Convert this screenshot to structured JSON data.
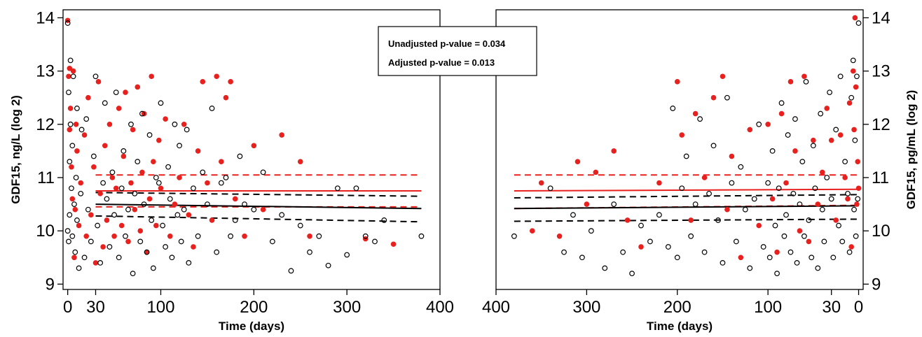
{
  "annotation": {
    "lines": [
      "Unadjusted p-value = 0.034",
      "Adjusted p-value = 0.013"
    ]
  },
  "chart_data": [
    {
      "type": "scatter",
      "panel": "left",
      "title": "",
      "xlabel": "Time (days)",
      "ylabel": "GDF15, ng/L (log 2)",
      "xlim": [
        -5,
        400
      ],
      "ylim": [
        8.9,
        14.15
      ],
      "x_ticks": [
        0,
        30,
        100,
        200,
        300,
        400
      ],
      "y_ticks": [
        9,
        10,
        11,
        12,
        13,
        14
      ],
      "x_reversed": false,
      "grid": false,
      "marker_colors": {
        "black": "#000000",
        "red": "#e8201e"
      },
      "lines": [
        {
          "color": "#e8201e",
          "style": "solid",
          "x": [
            30,
            380
          ],
          "y": [
            10.75,
            10.75
          ]
        },
        {
          "color": "#e8201e",
          "style": "dashed",
          "x": [
            30,
            380
          ],
          "y": [
            11.05,
            11.05
          ]
        },
        {
          "color": "#e8201e",
          "style": "dashed",
          "x": [
            30,
            380
          ],
          "y": [
            10.45,
            10.45
          ]
        },
        {
          "color": "#000000",
          "style": "solid",
          "x": [
            30,
            380
          ],
          "y": [
            10.5,
            10.42
          ]
        },
        {
          "color": "#000000",
          "style": "dashed",
          "x": [
            30,
            380
          ],
          "y": [
            10.72,
            10.65
          ]
        },
        {
          "color": "#000000",
          "style": "dashed",
          "x": [
            30,
            380
          ],
          "y": [
            10.28,
            10.17
          ]
        }
      ],
      "series": [
        {
          "color": "red",
          "x": [
            0,
            1,
            2,
            2,
            3,
            4,
            5,
            6,
            7,
            8,
            9,
            10,
            12,
            14,
            18,
            20,
            22,
            25,
            28,
            30,
            33,
            35,
            38,
            40,
            42,
            45,
            48,
            50,
            52,
            55,
            58,
            60,
            62,
            65,
            68,
            70,
            72,
            75,
            78,
            80,
            82,
            85,
            88,
            90,
            92,
            95,
            98,
            100,
            105,
            110,
            115,
            120,
            125,
            130,
            135,
            140,
            145,
            150,
            155,
            160,
            165,
            170,
            175,
            180,
            190,
            200,
            210,
            230,
            250,
            260,
            320,
            350
          ],
          "y": [
            13.95,
            12.9,
            13.05,
            11.9,
            12.3,
            11.2,
            10.6,
            13.0,
            9.5,
            10.4,
            12.0,
            11.5,
            10.1,
            10.9,
            11.8,
            9.9,
            12.5,
            10.3,
            11.2,
            9.4,
            12.8,
            10.7,
            9.7,
            11.6,
            10.2,
            12.0,
            11.0,
            9.9,
            10.8,
            12.3,
            10.1,
            11.4,
            12.6,
            9.8,
            10.9,
            11.9,
            10.4,
            12.7,
            10.0,
            11.1,
            12.2,
            9.6,
            10.6,
            12.9,
            11.3,
            10.1,
            11.7,
            10.8,
            12.1,
            9.9,
            10.5,
            11.0,
            12.0,
            10.3,
            9.7,
            11.5,
            12.8,
            10.9,
            10.2,
            12.9,
            11.3,
            12.5,
            12.8,
            10.6,
            9.9,
            11.6,
            10.4,
            11.8,
            11.3,
            9.9,
            9.85,
            9.75
          ]
        },
        {
          "color": "black",
          "x": [
            0,
            0,
            1,
            1,
            2,
            2,
            3,
            3,
            4,
            5,
            5,
            6,
            7,
            8,
            9,
            10,
            10,
            12,
            14,
            15,
            18,
            20,
            22,
            25,
            28,
            30,
            32,
            35,
            38,
            40,
            42,
            45,
            48,
            50,
            52,
            55,
            58,
            60,
            62,
            65,
            68,
            70,
            72,
            75,
            78,
            80,
            82,
            85,
            88,
            90,
            92,
            95,
            98,
            100,
            102,
            105,
            108,
            110,
            112,
            115,
            118,
            120,
            122,
            125,
            128,
            130,
            135,
            140,
            145,
            150,
            155,
            160,
            165,
            170,
            175,
            180,
            185,
            190,
            200,
            210,
            220,
            230,
            240,
            250,
            260,
            270,
            280,
            290,
            300,
            310,
            320,
            330,
            340,
            380
          ],
          "y": [
            13.9,
            10.0,
            12.6,
            9.8,
            11.3,
            10.3,
            13.2,
            12.0,
            10.8,
            9.9,
            11.6,
            12.9,
            10.5,
            9.6,
            11.0,
            12.3,
            10.2,
            9.3,
            10.7,
            11.9,
            9.5,
            12.1,
            10.4,
            9.8,
            11.4,
            12.9,
            10.1,
            9.4,
            10.9,
            12.4,
            10.6,
            9.7,
            11.1,
            10.3,
            12.6,
            9.5,
            10.8,
            11.5,
            9.9,
            10.4,
            12.0,
            9.2,
            10.7,
            11.3,
            9.8,
            12.2,
            10.5,
            9.6,
            11.8,
            10.2,
            9.3,
            11.0,
            10.9,
            12.4,
            10.1,
            9.7,
            11.2,
            10.6,
            9.5,
            12.0,
            10.3,
            11.6,
            9.8,
            10.4,
            11.9,
            9.4,
            10.8,
            9.9,
            11.1,
            10.5,
            12.3,
            9.6,
            10.9,
            11.0,
            9.9,
            10.2,
            11.4,
            10.5,
            10.4,
            11.1,
            9.8,
            10.3,
            9.25,
            10.1,
            9.6,
            9.9,
            9.35,
            10.8,
            9.55,
            10.8,
            9.9,
            9.8,
            10.2,
            9.9
          ]
        }
      ]
    },
    {
      "type": "scatter",
      "panel": "right",
      "title": "",
      "xlabel": "Time (days)",
      "ylabel": "GDF15, pg/mL (log 2)",
      "xlim": [
        400,
        -5
      ],
      "ylim": [
        8.9,
        14.15
      ],
      "x_ticks": [
        400,
        300,
        200,
        100,
        30,
        0
      ],
      "y_ticks": [
        9,
        10,
        11,
        12,
        13,
        14
      ],
      "x_reversed": true,
      "grid": false,
      "marker_colors": {
        "black": "#000000",
        "red": "#e8201e"
      },
      "lines": [
        {
          "color": "#e8201e",
          "style": "solid",
          "x": [
            380,
            0
          ],
          "y": [
            10.75,
            10.78
          ]
        },
        {
          "color": "#e8201e",
          "style": "dashed",
          "x": [
            380,
            0
          ],
          "y": [
            11.05,
            11.05
          ]
        },
        {
          "color": "#e8201e",
          "style": "dashed",
          "x": [
            380,
            0
          ],
          "y": [
            10.42,
            10.48
          ]
        },
        {
          "color": "#000000",
          "style": "solid",
          "x": [
            380,
            0
          ],
          "y": [
            10.42,
            10.47
          ]
        },
        {
          "color": "#000000",
          "style": "dashed",
          "x": [
            380,
            0
          ],
          "y": [
            10.62,
            10.68
          ]
        },
        {
          "color": "#000000",
          "style": "dashed",
          "x": [
            380,
            0
          ],
          "y": [
            10.18,
            10.22
          ]
        }
      ],
      "series": [
        {
          "color": "red",
          "x": [
            360,
            350,
            330,
            310,
            300,
            290,
            270,
            255,
            240,
            220,
            200,
            195,
            185,
            180,
            170,
            160,
            150,
            145,
            140,
            130,
            120,
            110,
            100,
            95,
            90,
            85,
            80,
            75,
            70,
            65,
            60,
            55,
            50,
            45,
            40,
            35,
            30,
            25,
            20,
            15,
            12,
            10,
            8,
            6,
            5,
            4,
            3,
            2,
            1,
            0
          ],
          "y": [
            10.0,
            10.9,
            9.9,
            11.3,
            10.5,
            11.1,
            11.5,
            10.2,
            9.7,
            10.9,
            12.8,
            11.8,
            10.2,
            12.2,
            11.0,
            12.5,
            12.9,
            10.4,
            11.4,
            9.5,
            11.9,
            10.1,
            12.0,
            10.6,
            9.6,
            12.2,
            10.9,
            12.8,
            11.5,
            10.0,
            12.9,
            9.8,
            11.7,
            10.5,
            11.1,
            12.3,
            11.7,
            10.2,
            11.8,
            11.0,
            10.6,
            12.4,
            9.7,
            13.0,
            11.9,
            14.0,
            12.7,
            10.5,
            11.3,
            10.8
          ]
        },
        {
          "color": "black",
          "x": [
            380,
            340,
            325,
            315,
            305,
            295,
            280,
            270,
            260,
            250,
            240,
            230,
            220,
            210,
            205,
            200,
            195,
            190,
            185,
            180,
            175,
            170,
            165,
            160,
            155,
            150,
            145,
            140,
            135,
            130,
            125,
            120,
            115,
            110,
            105,
            100,
            98,
            95,
            92,
            90,
            88,
            85,
            82,
            80,
            78,
            75,
            72,
            70,
            68,
            65,
            62,
            60,
            58,
            55,
            52,
            50,
            48,
            45,
            42,
            40,
            38,
            35,
            32,
            30,
            28,
            25,
            22,
            20,
            18,
            15,
            12,
            10,
            8,
            6,
            5,
            4,
            3,
            2,
            1,
            0
          ],
          "y": [
            9.9,
            10.8,
            9.6,
            10.3,
            9.5,
            10.0,
            9.3,
            10.5,
            9.6,
            9.2,
            10.1,
            9.8,
            10.3,
            9.7,
            12.3,
            9.5,
            10.8,
            11.4,
            9.9,
            10.5,
            12.1,
            9.6,
            10.7,
            11.6,
            10.2,
            9.4,
            12.5,
            10.9,
            9.8,
            11.2,
            10.4,
            9.3,
            10.6,
            12.0,
            9.7,
            10.9,
            9.5,
            11.5,
            10.1,
            9.2,
            10.8,
            12.4,
            9.9,
            10.3,
            11.8,
            9.6,
            10.7,
            12.1,
            9.4,
            10.5,
            11.3,
            9.9,
            12.8,
            10.2,
            9.5,
            11.6,
            10.8,
            9.3,
            12.2,
            10.4,
            9.8,
            11.0,
            12.6,
            10.6,
            9.5,
            11.9,
            10.1,
            12.9,
            9.8,
            11.3,
            10.7,
            9.6,
            12.5,
            13.2,
            10.4,
            11.7,
            9.9,
            12.9,
            10.6,
            13.9
          ]
        }
      ]
    }
  ]
}
